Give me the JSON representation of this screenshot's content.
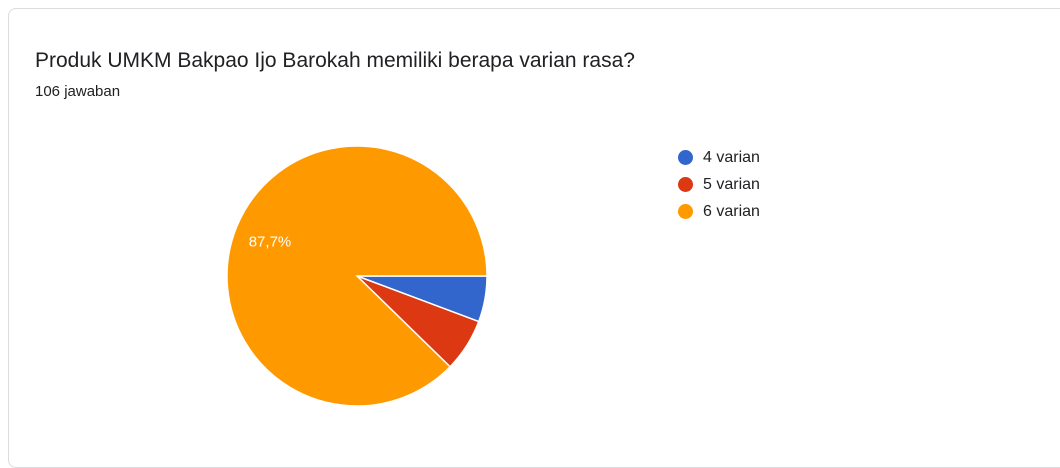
{
  "question": {
    "title": "Produk UMKM Bakpao Ijo Barokah memiliki berapa varian rasa?",
    "responses": "106 jawaban"
  },
  "chart_data": {
    "type": "pie",
    "categories": [
      "4 varian",
      "5 varian",
      "6 varian"
    ],
    "values": [
      5.7,
      6.6,
      87.7
    ],
    "data_labels": [
      "",
      "",
      "87,7%"
    ],
    "colors": [
      "#3366cc",
      "#dc3912",
      "#ff9900"
    ],
    "legend": "right"
  }
}
